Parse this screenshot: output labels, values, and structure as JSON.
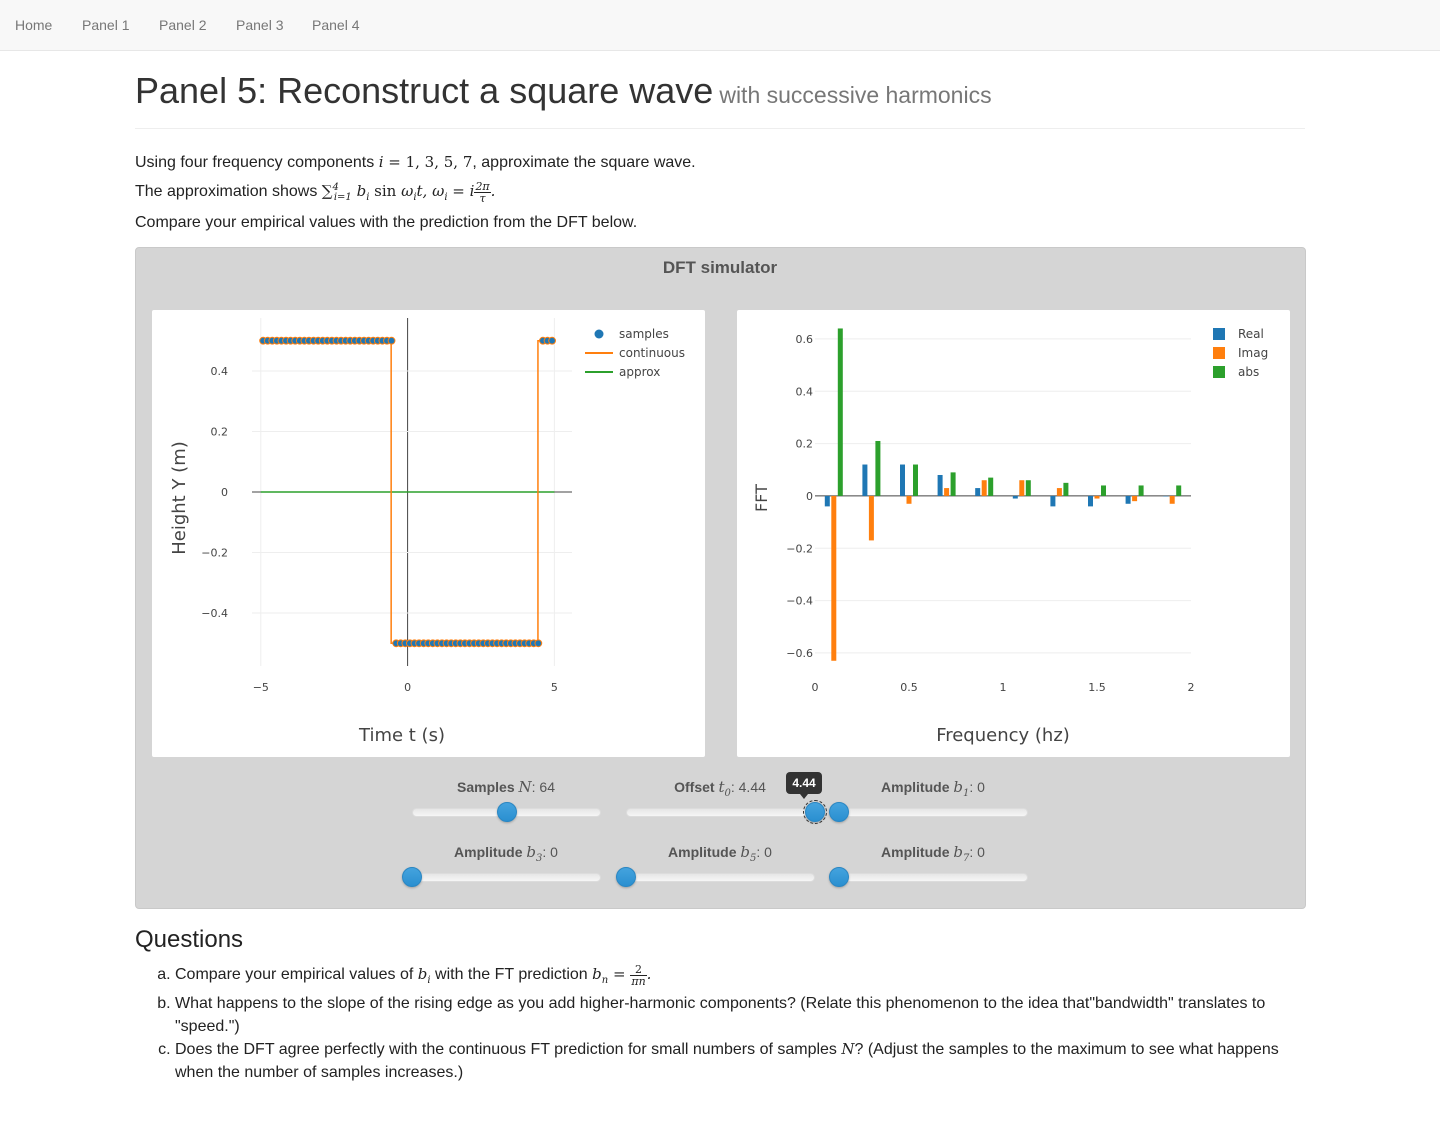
{
  "nav": {
    "items": [
      "Home",
      "Panel 1",
      "Panel 2",
      "Panel 3",
      "Panel 4"
    ]
  },
  "header": {
    "title": "Panel 5: Reconstruct a square wave",
    "subtitle": "with successive harmonics"
  },
  "intro": {
    "line1_before": "Using four frequency components ",
    "line1_math": "i = 1, 3, 5, 7",
    "line1_after": ", approximate the square wave.",
    "line2_before": "The approximation shows ",
    "line3": "Compare your empirical values with the prediction from the DFT below."
  },
  "simulator": {
    "title": "DFT simulator",
    "sliders": {
      "samples": {
        "label": "Samples",
        "symbol": "N",
        "value": "64",
        "fraction": 0.5
      },
      "offset": {
        "label": "Offset",
        "symbol": "t",
        "sub": "0",
        "value": "4.44",
        "tooltip": "4.44",
        "fraction": 1.0
      },
      "b1": {
        "label": "Amplitude",
        "symbol": "b",
        "sub": "1",
        "value": "0",
        "fraction": 0.0
      },
      "b3": {
        "label": "Amplitude",
        "symbol": "b",
        "sub": "3",
        "value": "0",
        "fraction": 0.0
      },
      "b5": {
        "label": "Amplitude",
        "symbol": "b",
        "sub": "5",
        "value": "0",
        "fraction": 0.0
      },
      "b7": {
        "label": "Amplitude",
        "symbol": "b",
        "sub": "7",
        "value": "0",
        "fraction": 0.0
      }
    }
  },
  "chart_data": [
    {
      "type": "line",
      "xlabel": "Time t (s)",
      "ylabel": "Height Y (m)",
      "xlim": [
        -5.3,
        5.6
      ],
      "ylim": [
        -0.575,
        0.575
      ],
      "xticks": [
        -5,
        0,
        5
      ],
      "yticks": [
        -0.4,
        -0.2,
        0,
        0.2,
        0.4
      ],
      "ytick_labels": [
        "−0.4",
        "−0.2",
        "0",
        "0.2",
        "0.4"
      ],
      "xtick_labels": [
        "−5",
        "0",
        "5"
      ],
      "grid": true,
      "legend_position": "top-right",
      "series": [
        {
          "name": "samples",
          "kind": "markers",
          "color": "#1f77b4",
          "segments": [
            {
              "x_start": -5,
              "x_end": -0.5,
              "y": 0.5
            },
            {
              "x_start": -0.5,
              "x_end": 4.5,
              "y": -0.5
            },
            {
              "x_start": 4.5,
              "x_end": 5,
              "y": 0.5
            }
          ],
          "count": 64
        },
        {
          "name": "continuous",
          "kind": "line",
          "color": "#ff7f0e",
          "x": [
            -5,
            -0.56,
            -0.56,
            4.44,
            4.44,
            5
          ],
          "y": [
            0.5,
            0.5,
            -0.5,
            -0.5,
            0.5,
            0.5
          ]
        },
        {
          "name": "approx",
          "kind": "line",
          "color": "#2ca02c",
          "x": [
            -5,
            5
          ],
          "y": [
            0,
            0
          ]
        }
      ]
    },
    {
      "type": "bar",
      "xlabel": "Frequency (hz)",
      "ylabel": "FFT",
      "xlim": [
        0,
        2
      ],
      "ylim": [
        -0.65,
        0.68
      ],
      "xticks": [
        0,
        0.5,
        1,
        1.5,
        2
      ],
      "xtick_labels": [
        "0",
        "0.5",
        "1",
        "1.5",
        "2"
      ],
      "yticks": [
        -0.6,
        -0.4,
        -0.2,
        0,
        0.2,
        0.4,
        0.6
      ],
      "ytick_labels": [
        "−0.6",
        "−0.4",
        "−0.2",
        "0",
        "0.2",
        "0.4",
        "0.6"
      ],
      "grid": true,
      "legend_position": "top-right",
      "x": [
        0.1,
        0.3,
        0.5,
        0.7,
        0.9,
        1.1,
        1.3,
        1.5,
        1.7,
        1.9
      ],
      "series": [
        {
          "name": "Real",
          "color": "#1f77b4",
          "values": [
            -0.04,
            0.12,
            0.12,
            0.08,
            0.03,
            -0.01,
            -0.04,
            -0.04,
            -0.03,
            0.0
          ]
        },
        {
          "name": "Imag",
          "color": "#ff7f0e",
          "values": [
            -0.63,
            -0.17,
            -0.03,
            0.03,
            0.06,
            0.06,
            0.03,
            -0.01,
            -0.02,
            -0.03
          ]
        },
        {
          "name": "abs",
          "color": "#2ca02c",
          "values": [
            0.64,
            0.21,
            0.12,
            0.09,
            0.07,
            0.06,
            0.05,
            0.04,
            0.04,
            0.04
          ]
        }
      ]
    }
  ],
  "questions": {
    "title": "Questions",
    "a_before": "Compare your empirical values of ",
    "a_mid": " with the FT prediction ",
    "b": "What happens to the slope of the rising edge as you add higher-harmonic components? (Relate this phenomenon to the idea that\"bandwidth\" translates to \"speed.\")",
    "c_before": "Does the DFT agree perfectly with the continuous FT prediction for small numbers of samples ",
    "c_after": "? (Adjust the samples to the maximum to see what happens when the number of samples increases.)"
  }
}
